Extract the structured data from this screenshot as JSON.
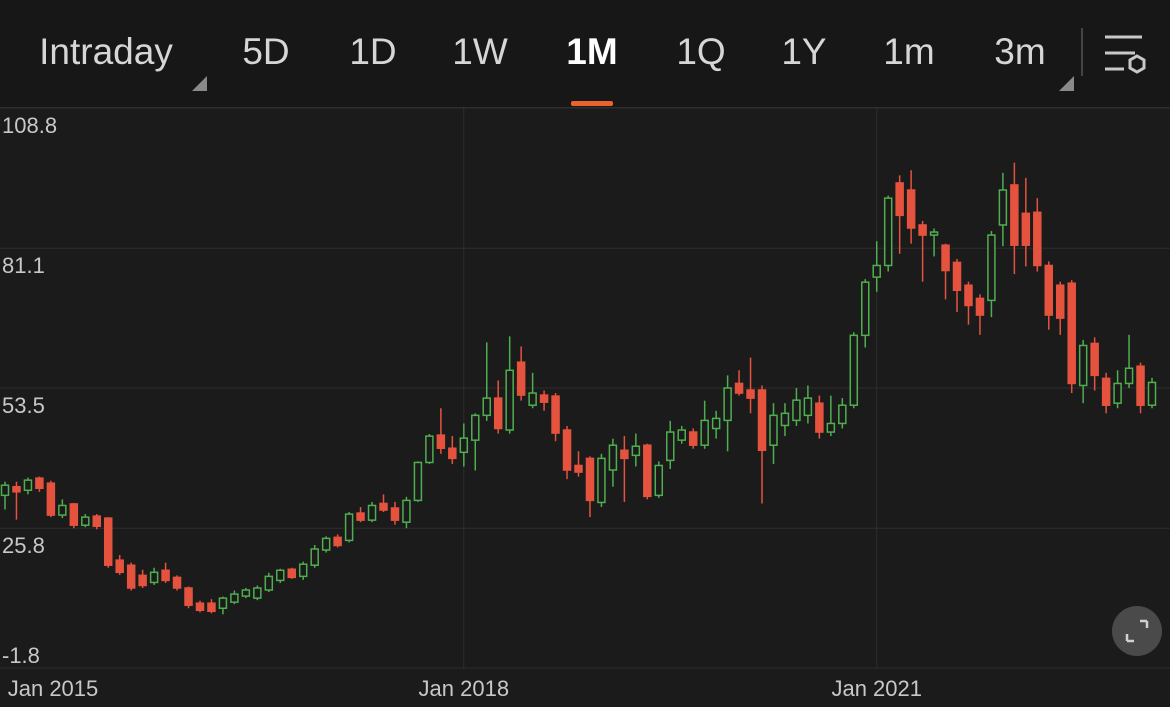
{
  "tabs": [
    "Intraday",
    "5D",
    "1D",
    "1W",
    "1M",
    "1Q",
    "1Y",
    "1m",
    "3m"
  ],
  "active_tab": "1M",
  "chart_data": {
    "type": "candlestick",
    "x": [
      "2014-09",
      "2014-10",
      "2014-11",
      "2014-12",
      "2015-01",
      "2015-02",
      "2015-03",
      "2015-04",
      "2015-05",
      "2015-06",
      "2015-07",
      "2015-08",
      "2015-09",
      "2015-10",
      "2015-11",
      "2015-12",
      "2016-01",
      "2016-02",
      "2016-03",
      "2016-04",
      "2016-05",
      "2016-06",
      "2016-07",
      "2016-08",
      "2016-09",
      "2016-10",
      "2016-11",
      "2016-12",
      "2017-01",
      "2017-02",
      "2017-03",
      "2017-04",
      "2017-05",
      "2017-06",
      "2017-07",
      "2017-08",
      "2017-09",
      "2017-10",
      "2017-11",
      "2017-12",
      "2018-01",
      "2018-02",
      "2018-03",
      "2018-04",
      "2018-05",
      "2018-06",
      "2018-07",
      "2018-08",
      "2018-09",
      "2018-10",
      "2018-11",
      "2018-12",
      "2019-01",
      "2019-02",
      "2019-03",
      "2019-04",
      "2019-05",
      "2019-06",
      "2019-07",
      "2019-08",
      "2019-09",
      "2019-10",
      "2019-11",
      "2019-12",
      "2020-01",
      "2020-02",
      "2020-03",
      "2020-04",
      "2020-05",
      "2020-06",
      "2020-07",
      "2020-08",
      "2020-09",
      "2020-10",
      "2020-11",
      "2020-12",
      "2021-01",
      "2021-02",
      "2021-03",
      "2021-04",
      "2021-05",
      "2021-06",
      "2021-07",
      "2021-08",
      "2021-09",
      "2021-10",
      "2021-11",
      "2021-12",
      "2022-01",
      "2022-02",
      "2022-03",
      "2022-04",
      "2022-05",
      "2022-06",
      "2022-07",
      "2022-08",
      "2022-09",
      "2022-10",
      "2022-11",
      "2022-12",
      "2023-01"
    ],
    "open": [
      32.3,
      34.0,
      33.3,
      35.7,
      34.7,
      28.4,
      30.6,
      26.4,
      28.2,
      27.8,
      19.5,
      18.5,
      16.5,
      15.1,
      17.5,
      16.1,
      14.0,
      11.0,
      11.0,
      10.0,
      11.2,
      12.4,
      12.0,
      13.6,
      15.5,
      17.7,
      16.3,
      18.5,
      21.5,
      24.0,
      23.4,
      28.8,
      27.4,
      30.7,
      29.8,
      27.0,
      31.3,
      38.8,
      44.2,
      41.6,
      40.8,
      43.2,
      48.1,
      51.5,
      45.2,
      58.6,
      50.1,
      52.1,
      51.9,
      45.2,
      38.2,
      39.6,
      30.9,
      37.3,
      41.2,
      40.2,
      42.2,
      32.3,
      39.2,
      43.2,
      44.8,
      42.2,
      45.5,
      47.1,
      54.4,
      53.1,
      53.1,
      42.2,
      46.1,
      47.1,
      48.1,
      50.5,
      44.8,
      46.5,
      50.1,
      63.9,
      75.4,
      77.7,
      94.0,
      92.6,
      85.7,
      83.7,
      81.7,
      78.3,
      73.8,
      71.2,
      70.8,
      85.7,
      93.6,
      88.0,
      88.2,
      77.7,
      73.8,
      74.2,
      54.0,
      62.3,
      55.4,
      50.5,
      54.4,
      57.8,
      50.1
    ],
    "high": [
      35.0,
      35.0,
      35.8,
      36.0,
      35.2,
      31.5,
      30.8,
      28.6,
      28.6,
      28.0,
      20.5,
      19.0,
      17.6,
      18.0,
      19.0,
      16.5,
      14.3,
      11.5,
      11.8,
      12.3,
      13.5,
      14.0,
      14.5,
      17.0,
      17.8,
      18.0,
      19.2,
      22.5,
      24.2,
      24.6,
      29.0,
      30.0,
      31.0,
      32.5,
      31.0,
      32.0,
      39.0,
      44.4,
      49.5,
      44.0,
      46.5,
      48.5,
      62.5,
      55.0,
      63.7,
      61.7,
      56.5,
      53.0,
      52.5,
      46.0,
      41.0,
      40.0,
      40.5,
      43.5,
      44.0,
      44.5,
      42.5,
      39.0,
      47.0,
      46.0,
      45.5,
      51.0,
      49.0,
      56.0,
      57.0,
      59.5,
      54.0,
      50.5,
      50.5,
      53.5,
      54.0,
      52.0,
      52.0,
      51.5,
      64.5,
      75.0,
      82.5,
      91.5,
      95.5,
      96.5,
      86.5,
      85.0,
      82.0,
      79.0,
      74.5,
      72.0,
      84.5,
      96.0,
      98.0,
      95.0,
      91.0,
      78.5,
      74.5,
      74.8,
      63.0,
      63.5,
      56.5,
      57.0,
      64.0,
      58.5,
      55.5
    ],
    "low": [
      29.5,
      27.5,
      32.5,
      33.0,
      28.0,
      27.8,
      25.8,
      26.0,
      25.6,
      18.0,
      16.6,
      13.5,
      14.0,
      14.6,
      15.0,
      13.5,
      10.0,
      9.2,
      9.0,
      8.8,
      10.8,
      12.0,
      11.6,
      13.2,
      15.0,
      15.8,
      15.6,
      18.0,
      21.0,
      22.0,
      23.0,
      27.0,
      27.0,
      29.0,
      26.5,
      25.8,
      31.0,
      38.5,
      40.5,
      38.5,
      38.0,
      37.2,
      47.0,
      44.5,
      44.5,
      51.0,
      49.5,
      49.0,
      43.0,
      35.5,
      36.0,
      28.0,
      30.0,
      34.0,
      31.0,
      38.0,
      31.5,
      31.8,
      37.5,
      42.5,
      41.5,
      41.5,
      43.5,
      41.0,
      52.0,
      48.5,
      30.7,
      38.5,
      44.0,
      46.0,
      46.5,
      43.5,
      44.0,
      45.5,
      49.5,
      61.5,
      72.5,
      76.5,
      80.0,
      82.0,
      74.5,
      79.5,
      71.0,
      68.5,
      66.0,
      64.0,
      67.5,
      81.5,
      76.0,
      77.5,
      76.5,
      65.0,
      64.0,
      52.5,
      50.5,
      53.0,
      48.5,
      49.5,
      53.5,
      48.5,
      49.5
    ],
    "close": [
      34.3,
      33.0,
      35.3,
      33.7,
      28.4,
      30.3,
      26.4,
      28.0,
      26.2,
      18.5,
      17.1,
      14.0,
      14.5,
      17.1,
      15.5,
      14.0,
      10.6,
      9.6,
      9.4,
      12.0,
      12.8,
      13.6,
      14.0,
      16.3,
      17.5,
      16.1,
      18.7,
      21.7,
      23.8,
      22.4,
      28.6,
      27.4,
      30.3,
      29.4,
      27.4,
      31.3,
      38.8,
      44.0,
      41.6,
      39.6,
      43.6,
      48.1,
      51.5,
      45.5,
      57.0,
      52.1,
      52.5,
      50.7,
      44.6,
      37.3,
      36.9,
      31.3,
      39.6,
      42.2,
      39.6,
      42.0,
      32.1,
      38.2,
      44.8,
      45.2,
      42.2,
      47.1,
      47.5,
      53.5,
      52.5,
      51.5,
      41.2,
      48.1,
      48.5,
      51.1,
      51.5,
      44.8,
      46.5,
      50.1,
      63.9,
      74.4,
      77.7,
      91.0,
      87.6,
      85.1,
      83.7,
      84.3,
      76.7,
      72.8,
      69.8,
      67.9,
      83.7,
      92.6,
      81.7,
      81.7,
      77.7,
      67.9,
      67.3,
      54.4,
      61.9,
      56.0,
      50.1,
      54.4,
      57.4,
      50.1,
      54.6
    ],
    "up_color": "#4fae4f",
    "down_color": "#e5533f",
    "ylim": [
      -1.8,
      108.8
    ],
    "yticks": [
      108.8,
      81.1,
      53.5,
      25.8,
      -1.8
    ],
    "xticks": [
      {
        "value": "2015-01",
        "label": "Jan 2015"
      },
      {
        "value": "2018-01",
        "label": "Jan 2018"
      },
      {
        "value": "2021-01",
        "label": "Jan 2021"
      }
    ],
    "grid": true
  }
}
